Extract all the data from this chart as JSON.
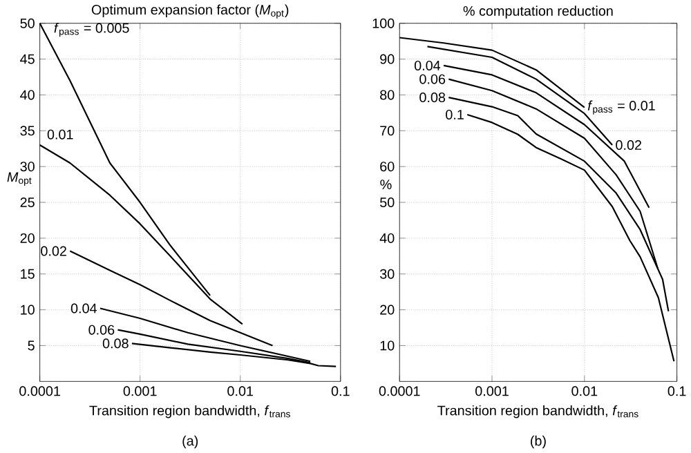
{
  "chart_data": [
    {
      "type": "line",
      "title": "Optimum expansion factor (*M*$_{opt}$)",
      "xlabel": "Transition region bandwidth, *f*$_{trans}$",
      "ylabel": "*M*$_{opt}$",
      "annotations": [
        "(a)"
      ],
      "log": "x",
      "grid": true,
      "xlim": [
        0.0001,
        0.1
      ],
      "ylim": [
        0,
        50
      ],
      "xticks": [
        0.0001,
        0.001,
        0.01,
        0.1
      ],
      "yticks": [
        5,
        10,
        15,
        20,
        25,
        30,
        35,
        40,
        45,
        50
      ],
      "series": [
        {
          "name": "*f*$_{pass}$ = 0.005",
          "color": "#000000",
          "x": [
            0.0001,
            0.0002,
            0.0005,
            0.001,
            0.002,
            0.005
          ],
          "values": [
            50,
            42,
            30.5,
            25,
            19,
            12
          ]
        },
        {
          "name": "0.01",
          "color": "#000000",
          "x": [
            0.0001,
            0.0002,
            0.0005,
            0.001,
            0.002,
            0.005,
            0.0105
          ],
          "values": [
            33,
            30.5,
            26,
            22,
            17.5,
            11.5,
            8
          ]
        },
        {
          "name": "0.02",
          "color": "#000000",
          "x": [
            0.0002,
            0.0005,
            0.001,
            0.002,
            0.005,
            0.01,
            0.021
          ],
          "values": [
            18.2,
            15.5,
            13.5,
            11.3,
            8.5,
            6.8,
            5
          ]
        },
        {
          "name": "0.04",
          "color": "#000000",
          "x": [
            0.0004,
            0.001,
            0.003,
            0.01,
            0.03,
            0.05
          ],
          "values": [
            10.2,
            8.8,
            6.8,
            5,
            3.5,
            2.8
          ]
        },
        {
          "name": "0.06",
          "color": "#000000",
          "x": [
            0.0006,
            0.001,
            0.003,
            0.01,
            0.03,
            0.05
          ],
          "values": [
            7.2,
            6.6,
            5.2,
            4.2,
            3.2,
            2.6
          ]
        },
        {
          "name": "0.08",
          "color": "#000000",
          "x": [
            0.00083,
            0.002,
            0.005,
            0.01,
            0.03,
            0.05,
            0.06,
            0.09
          ],
          "values": [
            5.3,
            4.7,
            4.1,
            3.7,
            3,
            2.5,
            2.2,
            2.1
          ]
        }
      ]
    },
    {
      "type": "line",
      "title": "% computation reduction",
      "xlabel": "Transition region bandwidth, *f*$_{trans}$",
      "ylabel": "%",
      "annotations": [
        "(b)"
      ],
      "log": "x",
      "grid": true,
      "xlim": [
        0.0001,
        0.1
      ],
      "ylim": [
        0,
        100
      ],
      "xticks": [
        0.0001,
        0.001,
        0.01,
        0.1
      ],
      "yticks": [
        10,
        20,
        30,
        40,
        50,
        60,
        70,
        80,
        90,
        100
      ],
      "series": [
        {
          "name": "*f*$_{pass}$ = 0.01",
          "color": "#000000",
          "x": [
            0.0001,
            0.0003,
            0.001,
            0.003,
            0.01
          ],
          "values": [
            96,
            94.5,
            92.5,
            87,
            76.5
          ]
        },
        {
          "name": "0.02",
          "color": "#000000",
          "x": [
            0.0002,
            0.001,
            0.003,
            0.01,
            0.02
          ],
          "values": [
            93.5,
            90.5,
            84.4,
            74.8,
            66
          ]
        },
        {
          "name": "0.04",
          "color": "#000000",
          "x": [
            0.0003,
            0.001,
            0.003,
            0.01,
            0.027,
            0.05
          ],
          "values": [
            88.2,
            85.6,
            80.6,
            71.7,
            61.5,
            48.5
          ]
        },
        {
          "name": "0.06",
          "color": "#000000",
          "x": [
            0.00034,
            0.001,
            0.003,
            0.01,
            0.022,
            0.04,
            0.062
          ],
          "values": [
            84.4,
            81.2,
            76.1,
            67.9,
            57.7,
            47.5,
            31.6
          ]
        },
        {
          "name": "0.08",
          "color": "#000000",
          "x": [
            0.00034,
            0.001,
            0.0019,
            0.003,
            0.01,
            0.022,
            0.04,
            0.07,
            0.081
          ],
          "values": [
            79.3,
            76.7,
            74.2,
            69.1,
            61.5,
            52.6,
            42.4,
            28.5,
            19.6
          ]
        },
        {
          "name": "0.1",
          "color": "#000000",
          "x": [
            0.00054,
            0.001,
            0.0019,
            0.003,
            0.0056,
            0.01,
            0.02,
            0.031,
            0.04,
            0.063,
            0.093
          ],
          "values": [
            74.5,
            72.3,
            69,
            65.3,
            62.1,
            59,
            48.8,
            39.3,
            34.8,
            23.4,
            5.6
          ]
        }
      ]
    }
  ]
}
